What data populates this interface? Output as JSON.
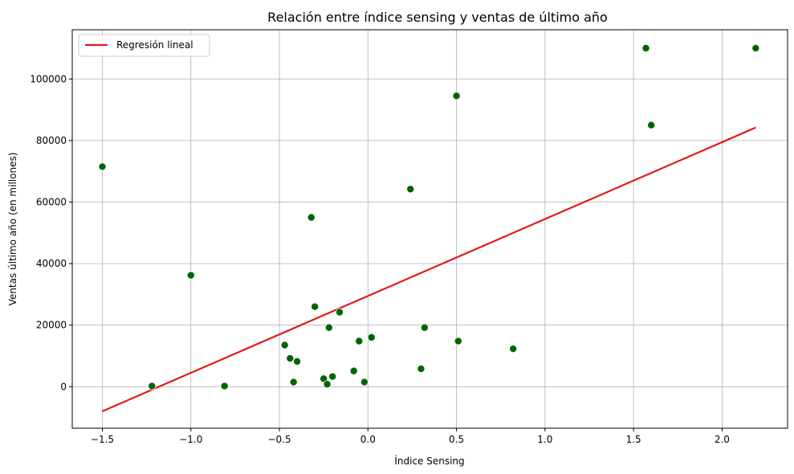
{
  "chart_data": {
    "type": "scatter",
    "title": "Relación entre índice sensing y ventas de último año",
    "xlabel": "Índice Sensing",
    "ylabel": "Ventas último año (en millones)",
    "xlim": [
      -1.67,
      2.37
    ],
    "ylim": [
      -13500,
      116000
    ],
    "xticks": [
      -1.5,
      -1.0,
      -0.5,
      0.0,
      0.5,
      1.0,
      1.5,
      2.0
    ],
    "xtick_labels": [
      "−1.5",
      "−1.0",
      "−0.5",
      "0.0",
      "0.5",
      "1.0",
      "1.5",
      "2.0"
    ],
    "yticks": [
      0,
      20000,
      40000,
      60000,
      80000,
      100000
    ],
    "ytick_labels": [
      "0",
      "20000",
      "40000",
      "60000",
      "80000",
      "100000"
    ],
    "grid": true,
    "legend_position": "top-left",
    "points": {
      "color": "#006400",
      "x": [
        -1.5,
        -1.22,
        -1.0,
        -0.81,
        -0.47,
        -0.44,
        -0.42,
        -0.4,
        -0.32,
        -0.3,
        -0.25,
        -0.23,
        -0.22,
        -0.2,
        -0.16,
        -0.08,
        -0.05,
        -0.02,
        0.02,
        0.24,
        0.3,
        0.32,
        0.5,
        0.51,
        0.82,
        1.57,
        1.6,
        2.19
      ],
      "y": [
        71500,
        200,
        36200,
        200,
        13500,
        9200,
        1500,
        8200,
        55000,
        26000,
        2600,
        800,
        19200,
        3300,
        24200,
        5100,
        14800,
        1500,
        16000,
        64200,
        5800,
        19200,
        94500,
        14800,
        12300,
        110000,
        85000,
        110000
      ]
    },
    "series": [
      {
        "name": "Regresión lineal",
        "color": "#e41a1c",
        "x": [
          -1.5,
          2.19
        ],
        "y": [
          -8000,
          84200
        ]
      }
    ]
  }
}
